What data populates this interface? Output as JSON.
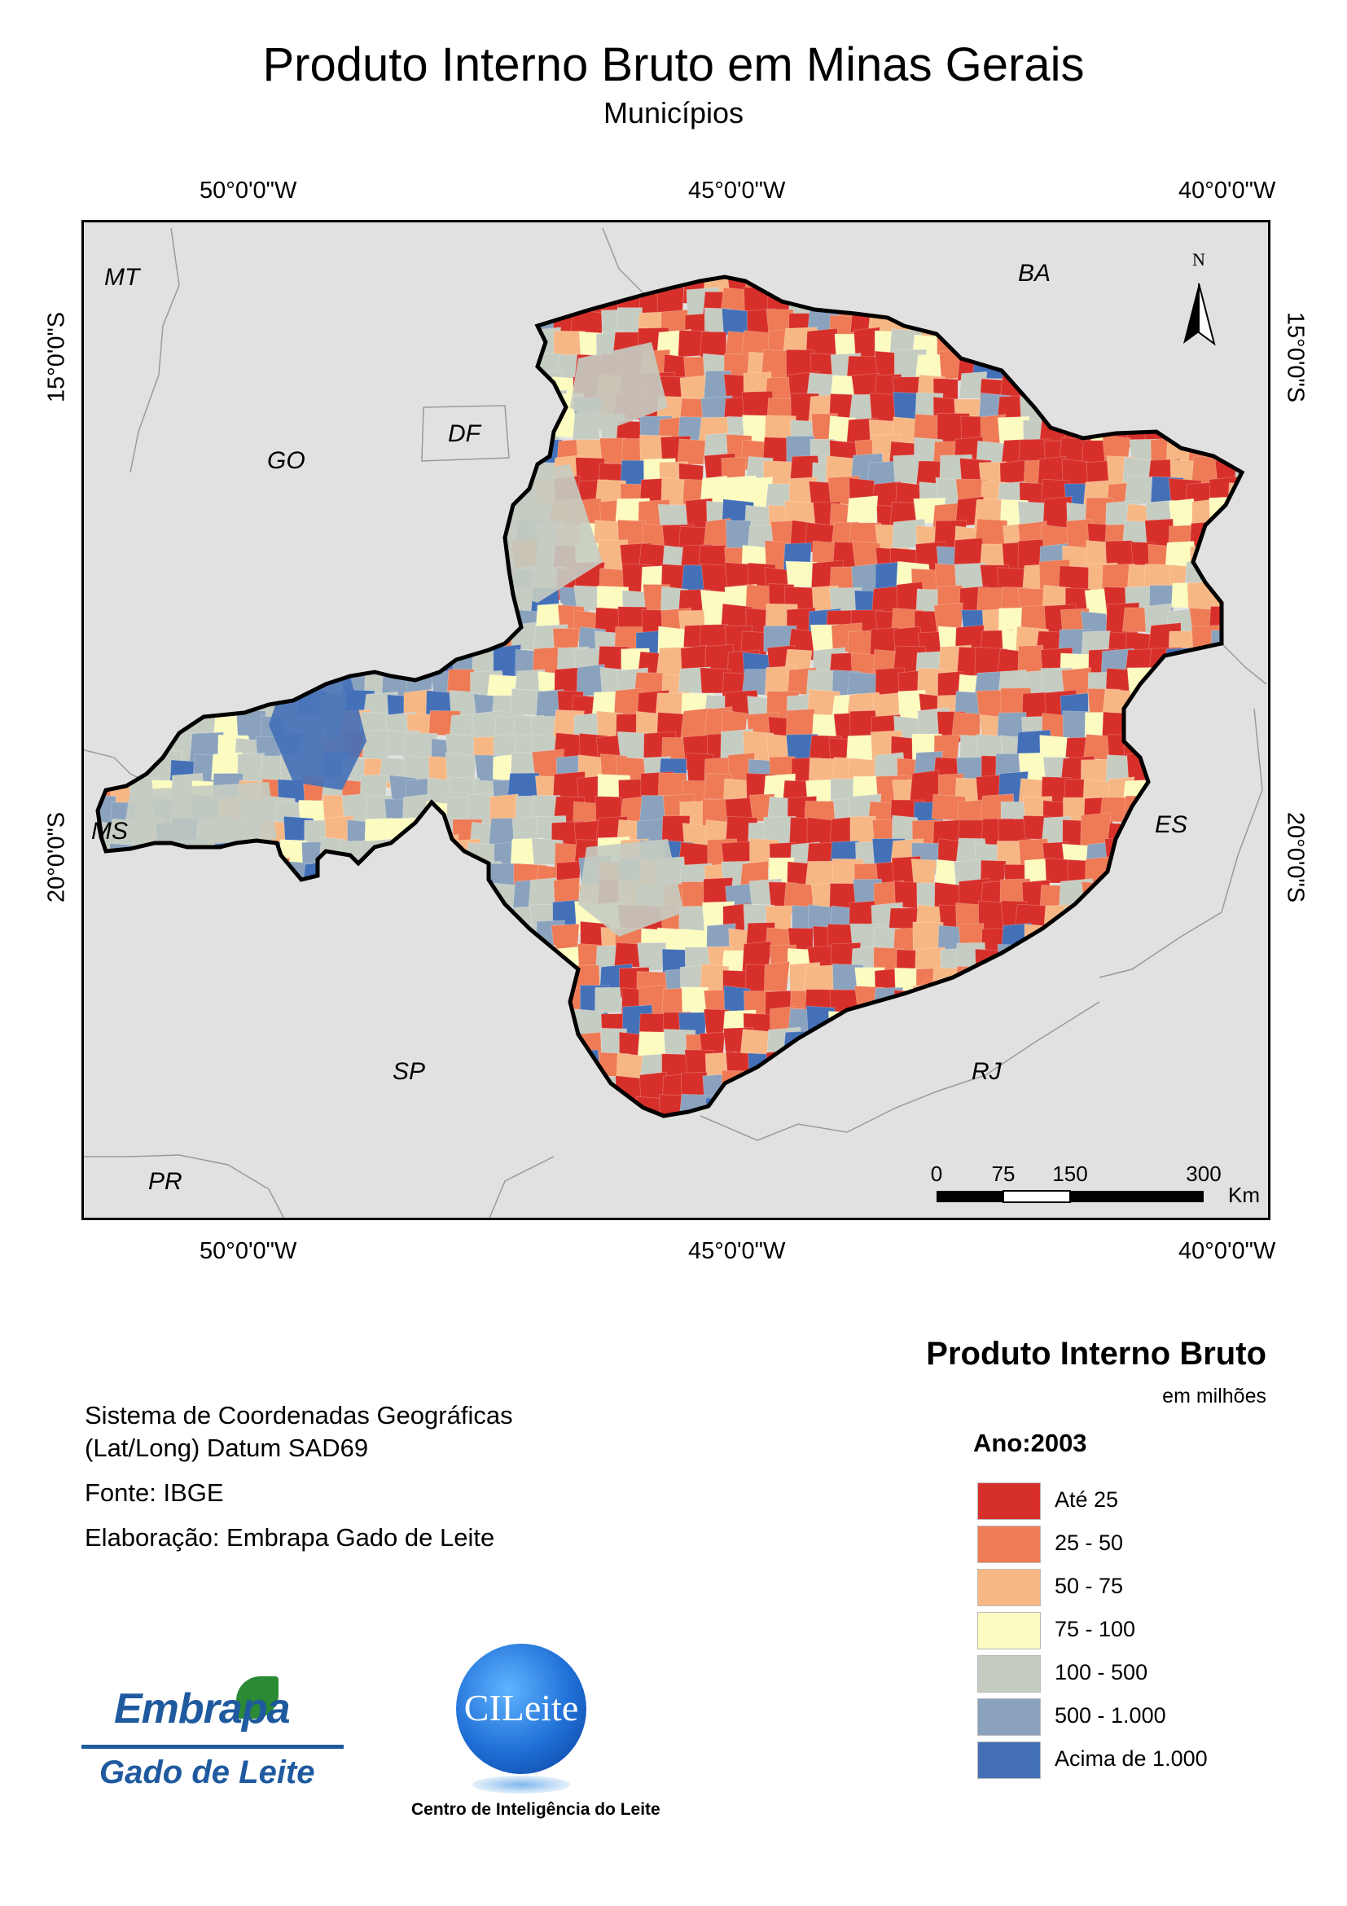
{
  "header": {
    "title": "Produto Interno Bruto em Minas Gerais",
    "subtitle": "Municípios"
  },
  "map": {
    "graticule": {
      "lon_top": [
        "50°0'0\"W",
        "45°0'0\"W",
        "40°0'0\"W"
      ],
      "lon_bottom": [
        "50°0'0\"W",
        "45°0'0\"W",
        "40°0'0\"W"
      ],
      "lat_left": [
        "15°0'0\"S",
        "20°0'0\"S"
      ],
      "lat_right": [
        "15°0'0\"S",
        "20°0'0\"S"
      ]
    },
    "states": [
      "MT",
      "BA",
      "GO",
      "DF",
      "MS",
      "ES",
      "SP",
      "RJ",
      "PR"
    ],
    "north_arrow": "N",
    "north_arrow_icon": "north-arrow-icon",
    "scale_bar": {
      "ticks": [
        "0",
        "75",
        "150",
        "300"
      ],
      "unit": "Km"
    },
    "colors": {
      "background": "#e1e1e1",
      "border": "#000000",
      "state_lines": "#9a9a9a"
    }
  },
  "legend": {
    "title": "Produto Interno Bruto",
    "units": "em milhões",
    "year": "Ano:2003",
    "classes": [
      {
        "label": "Até 25",
        "color": "#d7302a"
      },
      {
        "label": "25 - 50",
        "color": "#ee7b55"
      },
      {
        "label": "50 - 75",
        "color": "#f7b784"
      },
      {
        "label": "75 - 100",
        "color": "#fcfcc0"
      },
      {
        "label": "100 - 500",
        "color": "#c5ccc2"
      },
      {
        "label": "500 - 1.000",
        "color": "#8aa2bd"
      },
      {
        "label": "Acima de 1.000",
        "color": "#4470b8"
      }
    ]
  },
  "info": {
    "coord_system_line1": "Sistema de Coordenadas Geográficas",
    "coord_system_line2": "(Lat/Long) Datum SAD69",
    "source": "Fonte: IBGE",
    "credit": "Elaboração: Embrapa Gado de Leite"
  },
  "logos": {
    "embrapa_top": "Embrapa",
    "embrapa_bottom": "Gado de Leite",
    "cileite_badge": "CILeite",
    "cileite_caption": "Centro de Inteligência do Leite"
  }
}
